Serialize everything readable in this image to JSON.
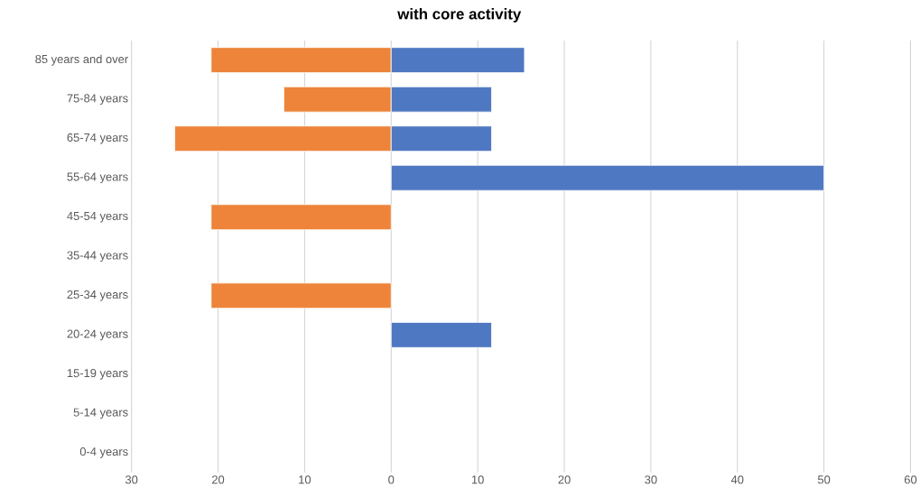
{
  "chart_data": {
    "type": "bar",
    "orientation": "horizontal",
    "title": "with core activity",
    "categories": [
      "85 years and over",
      "75-84 years",
      "65-74 years",
      "55-64 years",
      "45-54 years",
      "35-44 years",
      "25-34 years",
      "20-24 years",
      "15-19 years",
      "5-14 years",
      "0-4 years"
    ],
    "series": [
      {
        "color": "#ed843a",
        "values": [
          -20.8,
          -12.4,
          -25,
          null,
          -20.8,
          null,
          -20.8,
          null,
          null,
          null,
          null
        ]
      },
      {
        "color": "#4f78c2",
        "values": [
          15.4,
          11.6,
          11.6,
          50,
          null,
          null,
          null,
          11.6,
          null,
          null,
          null
        ]
      }
    ],
    "xlim": [
      -30,
      60
    ],
    "xticks": [
      {
        "value": -30,
        "label": "30"
      },
      {
        "value": -20,
        "label": "20"
      },
      {
        "value": -10,
        "label": "10"
      },
      0,
      10,
      20,
      30,
      40,
      50,
      60
    ],
    "grid": "x"
  }
}
